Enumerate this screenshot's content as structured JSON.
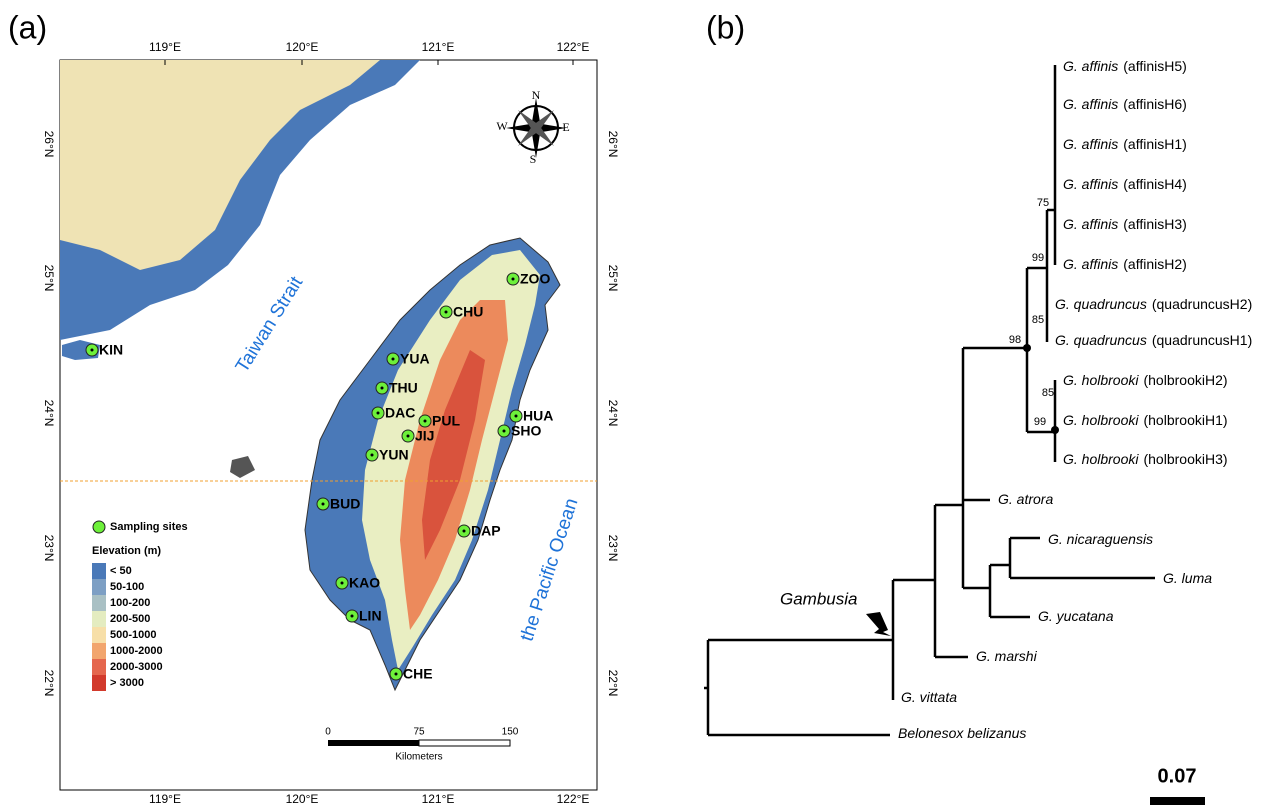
{
  "panels": {
    "a": "(a)",
    "b": "(b)"
  },
  "map": {
    "longitudes": [
      "119°E",
      "120°E",
      "121°E",
      "122°E"
    ],
    "latitudes": [
      "26°N",
      "25°N",
      "24°N",
      "23°N",
      "22°N"
    ],
    "compass": {
      "n": "N",
      "e": "E",
      "s": "S",
      "w": "W"
    },
    "water": [
      "Taiwan Strait",
      "the Pacific Ocean"
    ],
    "sites": [
      "ZOO",
      "CHU",
      "KIN",
      "YUA",
      "THU",
      "DAC",
      "PUL",
      "HUA",
      "JIJ",
      "SHO",
      "YUN",
      "BUD",
      "DAP",
      "KAO",
      "LIN",
      "CHE"
    ],
    "legend": {
      "sites_title": "Sampling sites",
      "elevation_title": "Elevation (m)",
      "classes": [
        "< 50",
        "50-100",
        "100-200",
        "200-500",
        "500-1000",
        "1000-2000",
        "2000-3000",
        "> 3000"
      ]
    },
    "scale_bar": {
      "ticks": [
        "0",
        "75",
        "150"
      ],
      "unit": "Kilometers"
    }
  },
  "tree": {
    "tips": [
      {
        "species": "G. affinis",
        "haplotype": "(affinisH5)"
      },
      {
        "species": "G. affinis",
        "haplotype": "(affinisH6)"
      },
      {
        "species": "G. affinis",
        "haplotype": "(affinisH1)"
      },
      {
        "species": "G. affinis",
        "haplotype": "(affinisH4)"
      },
      {
        "species": "G. affinis",
        "haplotype": "(affinisH3)"
      },
      {
        "species": "G. affinis",
        "haplotype": "(affinisH2)"
      },
      {
        "species": "G. quadruncus",
        "haplotype": "(quadruncusH2)"
      },
      {
        "species": "G. quadruncus",
        "haplotype": "(quadruncusH1)"
      },
      {
        "species": "G. holbrooki",
        "haplotype": "(holbrookiH2)"
      },
      {
        "species": "G. holbrooki",
        "haplotype": "(holbrookiH1)"
      },
      {
        "species": "G. holbrooki",
        "haplotype": "(holbrookiH3)"
      },
      {
        "species": "G. atrora"
      },
      {
        "species": "G. nicaraguensis"
      },
      {
        "species": "G. luma"
      },
      {
        "species": "G. yucatana"
      },
      {
        "species": "G. marshi"
      },
      {
        "species": "G. vittata"
      },
      {
        "species": "Belonesox belizanus"
      }
    ],
    "support": [
      "75",
      "99",
      "85",
      "98",
      "85",
      "99"
    ],
    "clade_label": "Gambusia",
    "scale": "0.07"
  }
}
